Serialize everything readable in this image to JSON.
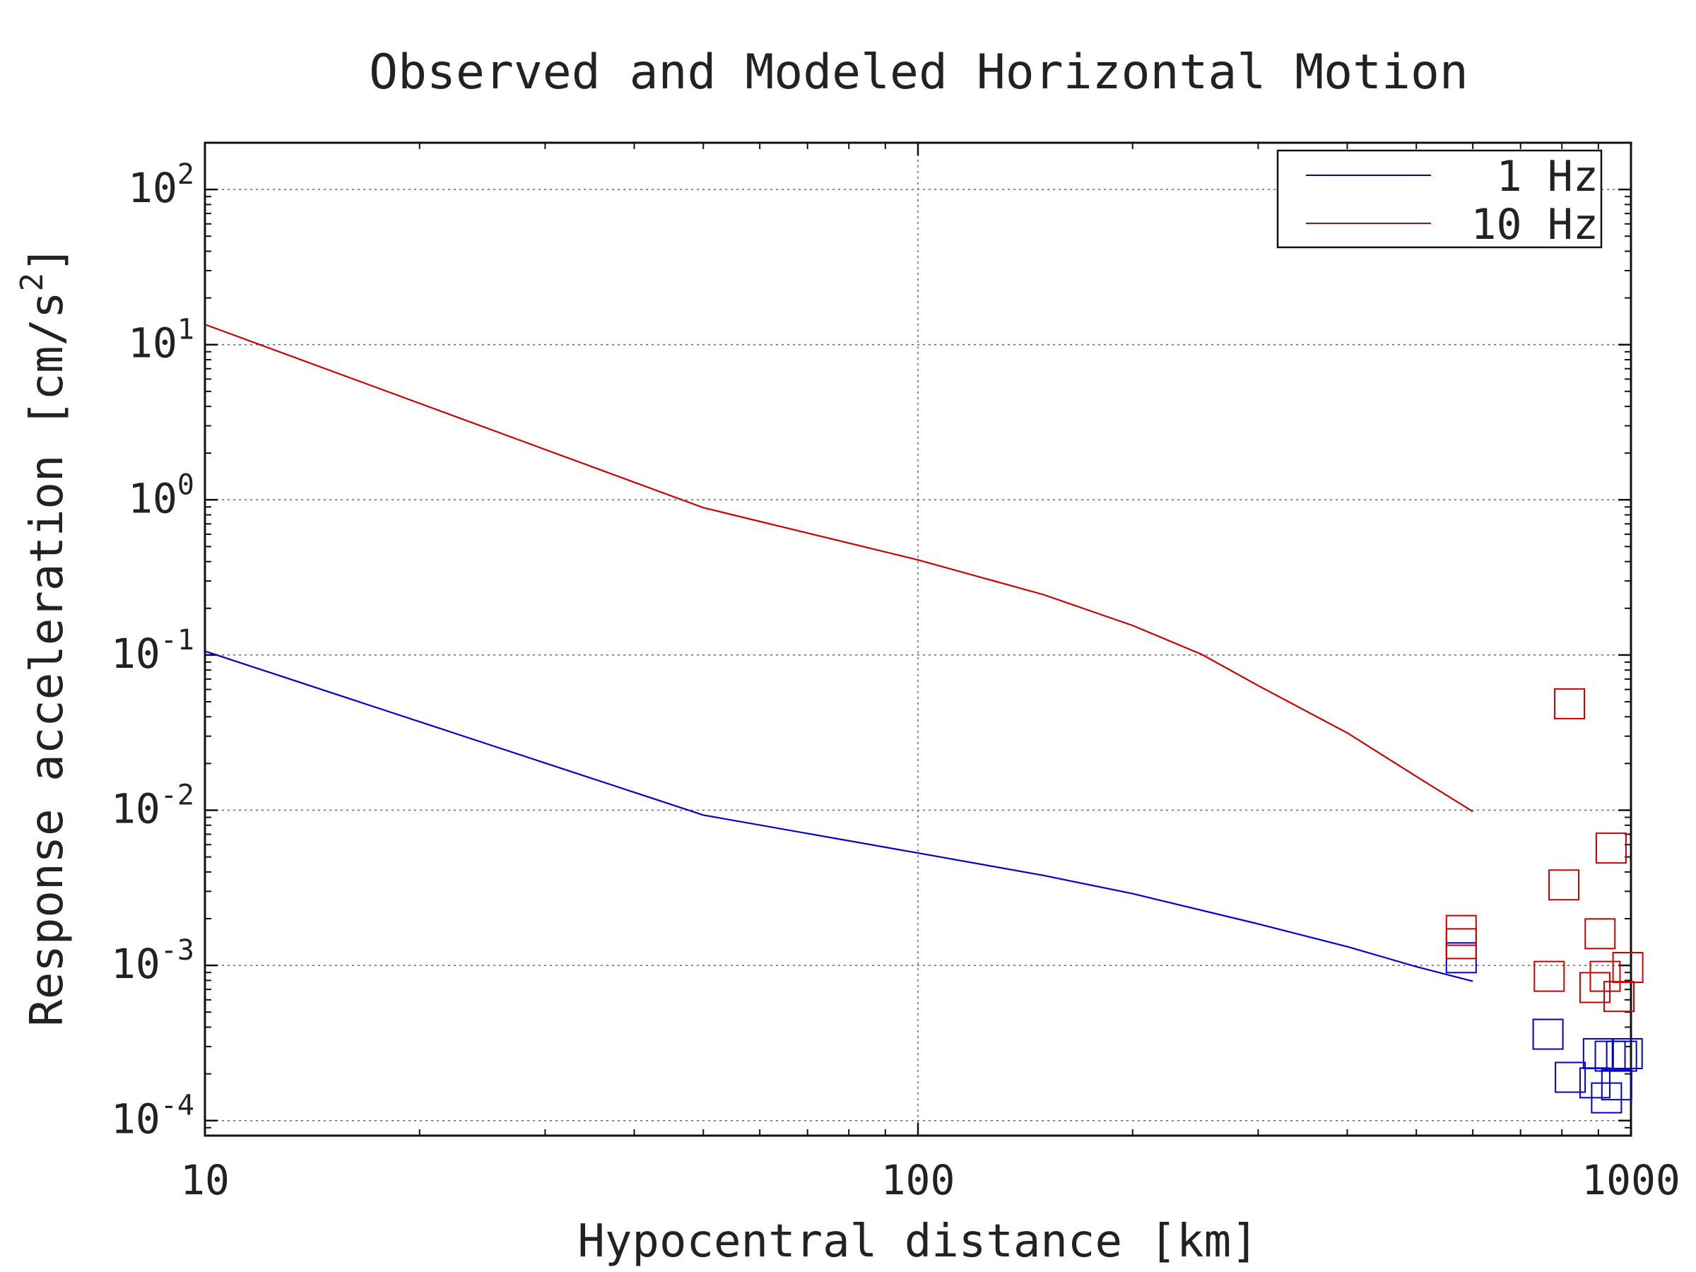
{
  "chart_data": {
    "type": "line",
    "title": "Observed and Modeled Horizontal Motion",
    "xlabel": "Hypocentral distance [km]",
    "ylabel": "Response acceleration [cm/s",
    "ylabel_sup": "2",
    "ylabel_end": "]",
    "x_scale": "log",
    "y_scale": "log",
    "xlim": [
      10,
      1000
    ],
    "ylim": [
      8e-05,
      200
    ],
    "grid": true,
    "legend_position": "top-right",
    "x_ticks": [
      {
        "value": 10,
        "label": "10"
      },
      {
        "value": 100,
        "label": "100"
      },
      {
        "value": 1000,
        "label": "1000"
      }
    ],
    "y_ticks": [
      {
        "value": 0.0001,
        "base": "10",
        "exp": "-4"
      },
      {
        "value": 0.001,
        "base": "10",
        "exp": "-3"
      },
      {
        "value": 0.01,
        "base": "10",
        "exp": "-2"
      },
      {
        "value": 0.1,
        "base": "10",
        "exp": "-1"
      },
      {
        "value": 1,
        "base": "10",
        "exp": "0"
      },
      {
        "value": 10,
        "base": "10",
        "exp": "1"
      },
      {
        "value": 100,
        "base": "10",
        "exp": "2"
      }
    ],
    "series": [
      {
        "name": "1 Hz",
        "color": "#0000cc",
        "x": [
          10,
          50,
          100,
          150,
          200,
          300,
          400,
          500,
          600
        ],
        "y": [
          0.106,
          0.0093,
          0.0053,
          0.0038,
          0.0029,
          0.00185,
          0.00132,
          0.00098,
          0.00079
        ]
      },
      {
        "name": "10 Hz",
        "color": "#cc0000",
        "x": [
          10,
          50,
          100,
          150,
          200,
          250,
          300,
          400,
          500,
          600
        ],
        "y": [
          13.5,
          0.89,
          0.41,
          0.245,
          0.155,
          0.101,
          0.0635,
          0.0315,
          0.0165,
          0.0098
        ]
      }
    ],
    "observed": [
      {
        "series": "1 Hz",
        "color": "#0000cc",
        "x": [
          578,
          765,
          822,
          890,
          900,
          924,
          935,
          955,
          970,
          988
        ],
        "y": [
          0.00112,
          0.00036,
          0.00019,
          0.000175,
          0.00027,
          0.00014,
          0.00026,
          0.00017,
          0.00026,
          0.00027
        ]
      },
      {
        "series": "10 Hz",
        "color": "#cc0000",
        "x": [
          578,
          578,
          768,
          805,
          820,
          890,
          905,
          920,
          938,
          962,
          990
        ],
        "y": [
          0.00168,
          0.00138,
          0.00085,
          0.0033,
          0.0485,
          0.00072,
          0.0016,
          0.00085,
          0.0057,
          0.00063,
          0.00097
        ]
      }
    ]
  }
}
